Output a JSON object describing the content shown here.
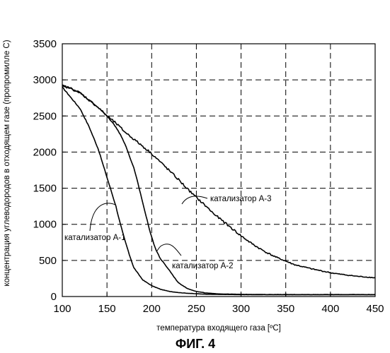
{
  "chart_data": {
    "type": "line",
    "title": "",
    "caption": "ФИГ. 4",
    "xlabel": "температура входящего газа [ºC]",
    "ylabel": "концентрация углеводородов в отходящем газе (пропромилле С)",
    "xlim": [
      100,
      450
    ],
    "ylim": [
      0,
      3500
    ],
    "xticks": [
      100,
      150,
      200,
      250,
      300,
      350,
      400,
      450
    ],
    "yticks": [
      0,
      500,
      1000,
      1500,
      2000,
      2500,
      3000,
      3500
    ],
    "grid": true,
    "legend": "none",
    "series": [
      {
        "name": "катализатор А-1",
        "x": [
          100,
          110,
          120,
          130,
          140,
          145,
          150,
          155,
          160,
          165,
          170,
          175,
          180,
          190,
          200,
          210,
          220,
          230,
          240,
          250,
          260,
          270,
          280,
          290,
          300,
          325,
          350,
          400,
          450
        ],
        "y": [
          2900,
          2750,
          2600,
          2350,
          2050,
          1850,
          1650,
          1450,
          1250,
          1000,
          780,
          580,
          400,
          230,
          150,
          100,
          70,
          55,
          45,
          38,
          33,
          30,
          28,
          27,
          26,
          25,
          25,
          25,
          25
        ]
      },
      {
        "name": "катализатор А-2",
        "x": [
          100,
          110,
          120,
          130,
          140,
          150,
          160,
          165,
          170,
          175,
          180,
          185,
          190,
          195,
          200,
          205,
          210,
          215,
          220,
          225,
          230,
          240,
          250,
          260,
          270,
          280,
          290,
          300,
          325,
          350,
          400,
          450
        ],
        "y": [
          2920,
          2880,
          2820,
          2720,
          2620,
          2500,
          2350,
          2240,
          2120,
          1950,
          1780,
          1550,
          1300,
          1050,
          820,
          640,
          520,
          440,
          360,
          270,
          190,
          110,
          70,
          50,
          40,
          35,
          32,
          30,
          28,
          27,
          27,
          27
        ]
      },
      {
        "name": "катализатор А-3",
        "x": [
          100,
          110,
          120,
          130,
          140,
          150,
          160,
          170,
          180,
          190,
          200,
          210,
          220,
          230,
          240,
          250,
          260,
          270,
          280,
          290,
          300,
          310,
          320,
          330,
          340,
          350,
          360,
          370,
          380,
          390,
          400,
          410,
          420,
          430,
          440,
          450
        ],
        "y": [
          2920,
          2880,
          2820,
          2720,
          2620,
          2500,
          2400,
          2280,
          2180,
          2080,
          1980,
          1860,
          1740,
          1620,
          1490,
          1370,
          1260,
          1140,
          1040,
          940,
          840,
          750,
          670,
          600,
          540,
          490,
          440,
          410,
          380,
          355,
          330,
          310,
          295,
          280,
          270,
          260
        ]
      }
    ],
    "annotations": [
      {
        "text": "катализатор А-1",
        "series": "катализатор А-1"
      },
      {
        "text": "катализатор А-2",
        "series": "катализатор А-2"
      },
      {
        "text": "катализатор А-3",
        "series": "катализатор А-3"
      }
    ]
  }
}
